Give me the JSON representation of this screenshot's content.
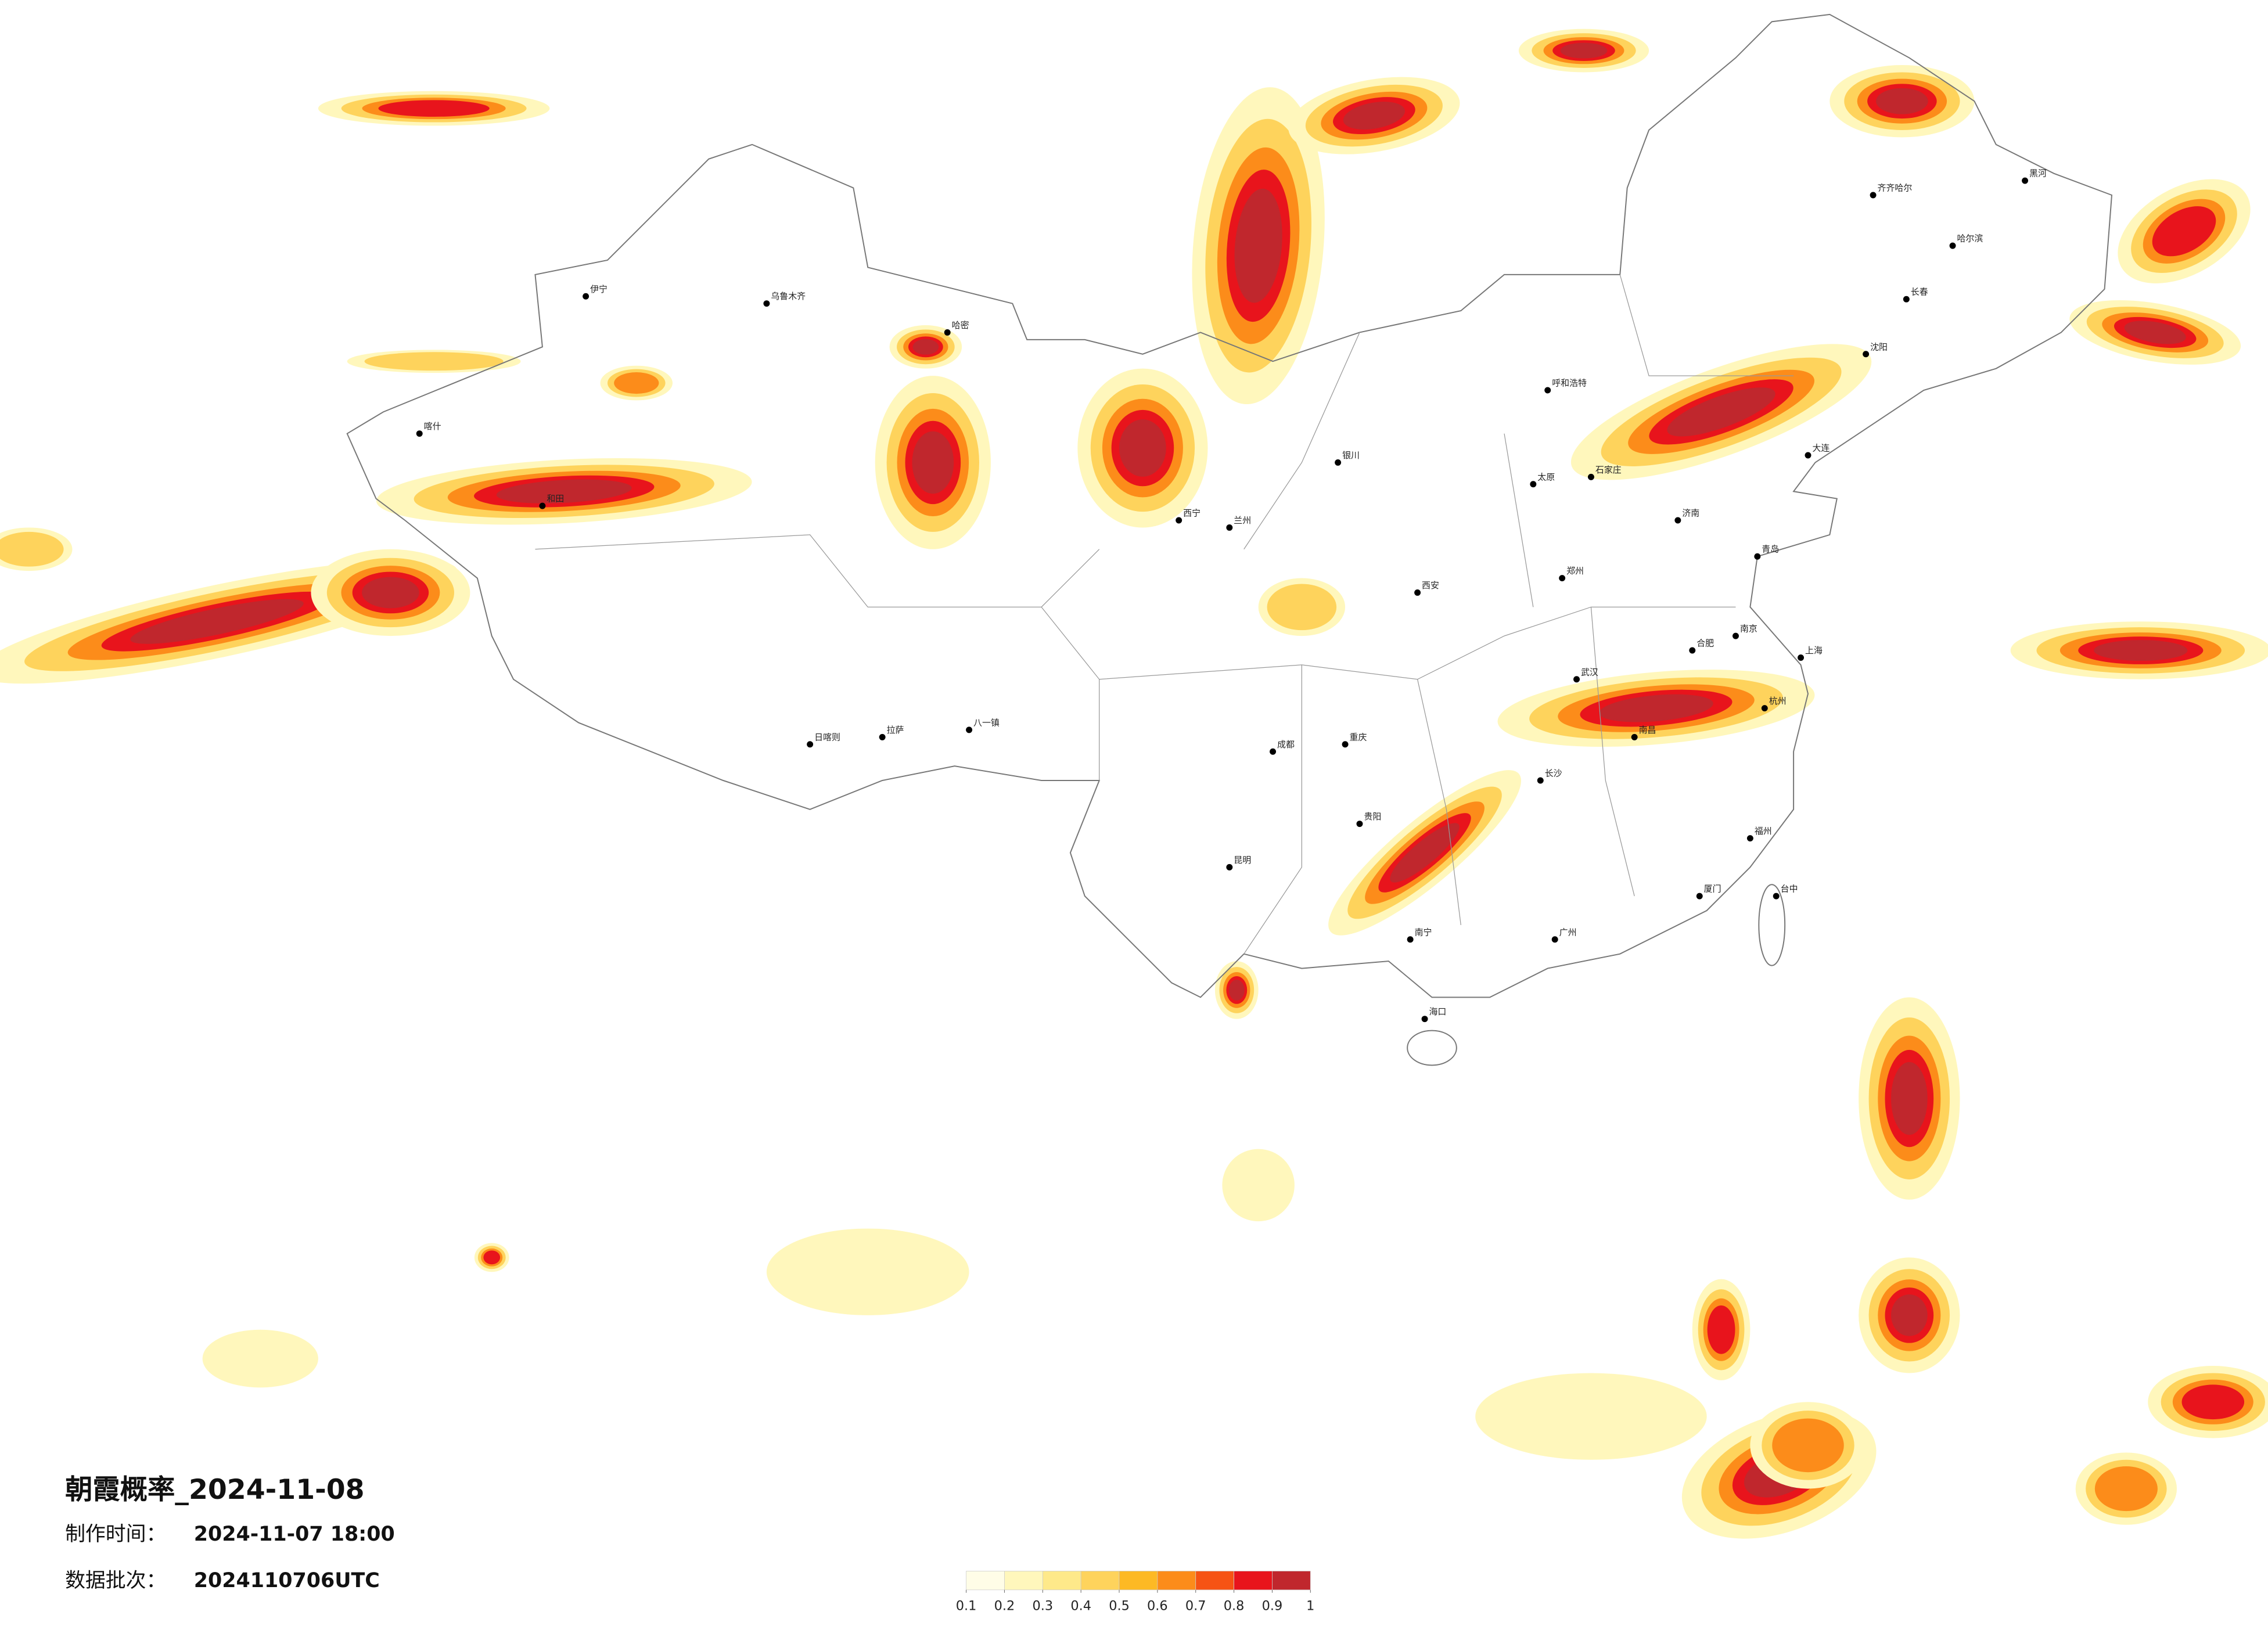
{
  "title": "朝霞概率_2024-11-08",
  "issue_time": {
    "label": "制作时间：",
    "value": "2024-11-07 18:00"
  },
  "data_batch": {
    "label": "数据批次：",
    "value": "2024110706UTC"
  },
  "colorbar": {
    "colors": [
      "#fffde7",
      "#fff7bc",
      "#fee98a",
      "#fed35c",
      "#fdb924",
      "#fc8c1a",
      "#f65314",
      "#e8141c",
      "#c0272d"
    ],
    "ticks": [
      0.1,
      0.2,
      0.3,
      0.4,
      0.5,
      0.6,
      0.7,
      0.8,
      0.9,
      1
    ]
  },
  "cities": [
    "哈尔滨",
    "长春",
    "沈阳",
    "齐齐哈尔",
    "黑河",
    "呼和浩特",
    "石家庄",
    "太原",
    "济南",
    "郑州",
    "西安",
    "兰州",
    "西宁",
    "银川",
    "成都",
    "重庆",
    "武汉",
    "长沙",
    "南昌",
    "合肥",
    "南京",
    "上海",
    "杭州",
    "福州",
    "厦门",
    "广州",
    "南宁",
    "贵阳",
    "昆明",
    "拉萨",
    "日喀则",
    "八一镇",
    "乌鲁木齐",
    "伊宁",
    "喀什",
    "和田",
    "哈密",
    "海口",
    "台中",
    "大连",
    "青岛"
  ]
}
